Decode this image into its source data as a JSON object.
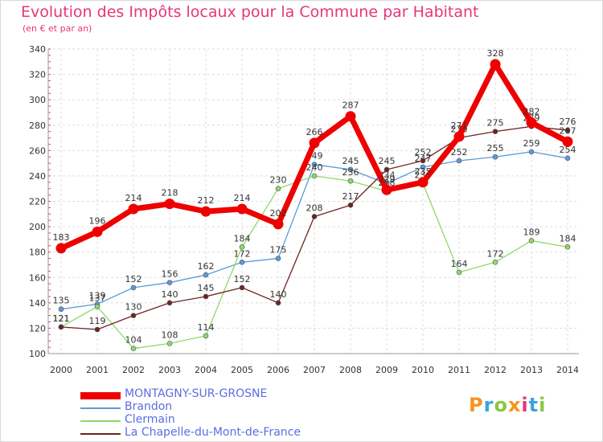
{
  "title": "Evolution des Impôts locaux pour la Commune par Habitant",
  "subtitle": "(en € et par an)",
  "logo": {
    "text": "Proxiti",
    "colors": [
      "#f7941d",
      "#3aa3e3",
      "#8cc63f",
      "#f7941d",
      "#e8357a",
      "#3aa3e3",
      "#8cc63f"
    ]
  },
  "chart_data": {
    "type": "line",
    "title": "Evolution des Impôts locaux pour la Commune par Habitant",
    "ylabel": "(en € et par an)",
    "xlabel": "",
    "ylim": [
      100,
      340
    ],
    "yticks": [
      100,
      120,
      140,
      160,
      180,
      200,
      220,
      240,
      260,
      280,
      300,
      320,
      340
    ],
    "x": [
      "2000",
      "2001",
      "2002",
      "2003",
      "2004",
      "2005",
      "2006",
      "2007",
      "2008",
      "2009",
      "2010",
      "2011",
      "2012",
      "2013",
      "2014"
    ],
    "grid": true,
    "series": [
      {
        "name": "Brandon",
        "color": "#5b9bd5",
        "values": [
          135,
          139,
          152,
          156,
          162,
          172,
          175,
          249,
          245,
          234,
          247,
          252,
          255,
          259,
          254
        ]
      },
      {
        "name": "Clermain",
        "color": "#8ed86a",
        "values": [
          121,
          137,
          104,
          108,
          114,
          184,
          230,
          240,
          236,
          228,
          234,
          164,
          172,
          189,
          184
        ]
      },
      {
        "name": "La Chapelle-du-Mont-de-France",
        "color": "#6b2424",
        "values": [
          121,
          119,
          130,
          140,
          145,
          152,
          140,
          208,
          217,
          245,
          252,
          270,
          275,
          279,
          276
        ]
      },
      {
        "name": "MONTAGNY-SUR-GROSNE",
        "color": "#ee0000",
        "values": [
          183,
          196,
          214,
          218,
          212,
          214,
          202,
          266,
          287,
          229,
          235,
          271,
          328,
          282,
          267
        ]
      }
    ],
    "legend": [
      "MONTAGNY-SUR-GROSNE",
      "Brandon",
      "Clermain",
      "La Chapelle-du-Mont-de-France"
    ]
  }
}
